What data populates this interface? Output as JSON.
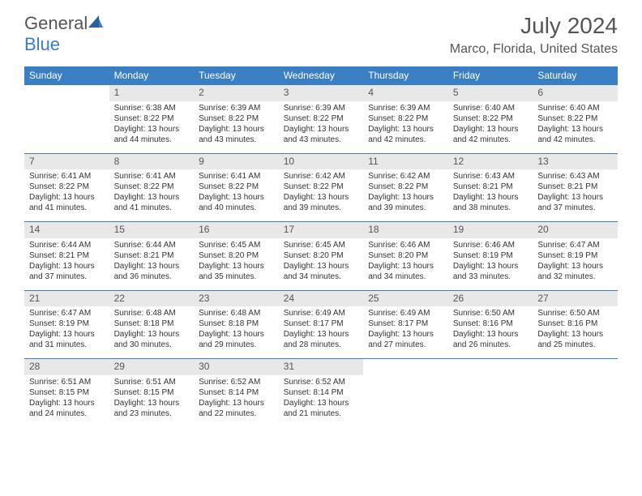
{
  "brand": {
    "part1": "General",
    "part2": "Blue"
  },
  "title": "July 2024",
  "location": "Marco, Florida, United States",
  "colors": {
    "header_bg": "#3a7fc4",
    "header_text": "#ffffff",
    "daynum_bg": "#e8e8e8",
    "text": "#333333",
    "title_text": "#555555",
    "border": "#3a7fc4",
    "page_bg": "#ffffff"
  },
  "fonts": {
    "title_size": 28,
    "location_size": 16,
    "dayhead_size": 12,
    "daynum_size": 12,
    "cell_size": 10
  },
  "days_of_week": [
    "Sunday",
    "Monday",
    "Tuesday",
    "Wednesday",
    "Thursday",
    "Friday",
    "Saturday"
  ],
  "weeks": [
    {
      "cells": [
        {
          "day": "",
          "sunrise": "",
          "sunset": "",
          "daylight1": "",
          "daylight2": ""
        },
        {
          "day": "1",
          "sunrise": "Sunrise: 6:38 AM",
          "sunset": "Sunset: 8:22 PM",
          "daylight1": "Daylight: 13 hours",
          "daylight2": "and 44 minutes."
        },
        {
          "day": "2",
          "sunrise": "Sunrise: 6:39 AM",
          "sunset": "Sunset: 8:22 PM",
          "daylight1": "Daylight: 13 hours",
          "daylight2": "and 43 minutes."
        },
        {
          "day": "3",
          "sunrise": "Sunrise: 6:39 AM",
          "sunset": "Sunset: 8:22 PM",
          "daylight1": "Daylight: 13 hours",
          "daylight2": "and 43 minutes."
        },
        {
          "day": "4",
          "sunrise": "Sunrise: 6:39 AM",
          "sunset": "Sunset: 8:22 PM",
          "daylight1": "Daylight: 13 hours",
          "daylight2": "and 42 minutes."
        },
        {
          "day": "5",
          "sunrise": "Sunrise: 6:40 AM",
          "sunset": "Sunset: 8:22 PM",
          "daylight1": "Daylight: 13 hours",
          "daylight2": "and 42 minutes."
        },
        {
          "day": "6",
          "sunrise": "Sunrise: 6:40 AM",
          "sunset": "Sunset: 8:22 PM",
          "daylight1": "Daylight: 13 hours",
          "daylight2": "and 42 minutes."
        }
      ]
    },
    {
      "cells": [
        {
          "day": "7",
          "sunrise": "Sunrise: 6:41 AM",
          "sunset": "Sunset: 8:22 PM",
          "daylight1": "Daylight: 13 hours",
          "daylight2": "and 41 minutes."
        },
        {
          "day": "8",
          "sunrise": "Sunrise: 6:41 AM",
          "sunset": "Sunset: 8:22 PM",
          "daylight1": "Daylight: 13 hours",
          "daylight2": "and 41 minutes."
        },
        {
          "day": "9",
          "sunrise": "Sunrise: 6:41 AM",
          "sunset": "Sunset: 8:22 PM",
          "daylight1": "Daylight: 13 hours",
          "daylight2": "and 40 minutes."
        },
        {
          "day": "10",
          "sunrise": "Sunrise: 6:42 AM",
          "sunset": "Sunset: 8:22 PM",
          "daylight1": "Daylight: 13 hours",
          "daylight2": "and 39 minutes."
        },
        {
          "day": "11",
          "sunrise": "Sunrise: 6:42 AM",
          "sunset": "Sunset: 8:22 PM",
          "daylight1": "Daylight: 13 hours",
          "daylight2": "and 39 minutes."
        },
        {
          "day": "12",
          "sunrise": "Sunrise: 6:43 AM",
          "sunset": "Sunset: 8:21 PM",
          "daylight1": "Daylight: 13 hours",
          "daylight2": "and 38 minutes."
        },
        {
          "day": "13",
          "sunrise": "Sunrise: 6:43 AM",
          "sunset": "Sunset: 8:21 PM",
          "daylight1": "Daylight: 13 hours",
          "daylight2": "and 37 minutes."
        }
      ]
    },
    {
      "cells": [
        {
          "day": "14",
          "sunrise": "Sunrise: 6:44 AM",
          "sunset": "Sunset: 8:21 PM",
          "daylight1": "Daylight: 13 hours",
          "daylight2": "and 37 minutes."
        },
        {
          "day": "15",
          "sunrise": "Sunrise: 6:44 AM",
          "sunset": "Sunset: 8:21 PM",
          "daylight1": "Daylight: 13 hours",
          "daylight2": "and 36 minutes."
        },
        {
          "day": "16",
          "sunrise": "Sunrise: 6:45 AM",
          "sunset": "Sunset: 8:20 PM",
          "daylight1": "Daylight: 13 hours",
          "daylight2": "and 35 minutes."
        },
        {
          "day": "17",
          "sunrise": "Sunrise: 6:45 AM",
          "sunset": "Sunset: 8:20 PM",
          "daylight1": "Daylight: 13 hours",
          "daylight2": "and 34 minutes."
        },
        {
          "day": "18",
          "sunrise": "Sunrise: 6:46 AM",
          "sunset": "Sunset: 8:20 PM",
          "daylight1": "Daylight: 13 hours",
          "daylight2": "and 34 minutes."
        },
        {
          "day": "19",
          "sunrise": "Sunrise: 6:46 AM",
          "sunset": "Sunset: 8:19 PM",
          "daylight1": "Daylight: 13 hours",
          "daylight2": "and 33 minutes."
        },
        {
          "day": "20",
          "sunrise": "Sunrise: 6:47 AM",
          "sunset": "Sunset: 8:19 PM",
          "daylight1": "Daylight: 13 hours",
          "daylight2": "and 32 minutes."
        }
      ]
    },
    {
      "cells": [
        {
          "day": "21",
          "sunrise": "Sunrise: 6:47 AM",
          "sunset": "Sunset: 8:19 PM",
          "daylight1": "Daylight: 13 hours",
          "daylight2": "and 31 minutes."
        },
        {
          "day": "22",
          "sunrise": "Sunrise: 6:48 AM",
          "sunset": "Sunset: 8:18 PM",
          "daylight1": "Daylight: 13 hours",
          "daylight2": "and 30 minutes."
        },
        {
          "day": "23",
          "sunrise": "Sunrise: 6:48 AM",
          "sunset": "Sunset: 8:18 PM",
          "daylight1": "Daylight: 13 hours",
          "daylight2": "and 29 minutes."
        },
        {
          "day": "24",
          "sunrise": "Sunrise: 6:49 AM",
          "sunset": "Sunset: 8:17 PM",
          "daylight1": "Daylight: 13 hours",
          "daylight2": "and 28 minutes."
        },
        {
          "day": "25",
          "sunrise": "Sunrise: 6:49 AM",
          "sunset": "Sunset: 8:17 PM",
          "daylight1": "Daylight: 13 hours",
          "daylight2": "and 27 minutes."
        },
        {
          "day": "26",
          "sunrise": "Sunrise: 6:50 AM",
          "sunset": "Sunset: 8:16 PM",
          "daylight1": "Daylight: 13 hours",
          "daylight2": "and 26 minutes."
        },
        {
          "day": "27",
          "sunrise": "Sunrise: 6:50 AM",
          "sunset": "Sunset: 8:16 PM",
          "daylight1": "Daylight: 13 hours",
          "daylight2": "and 25 minutes."
        }
      ]
    },
    {
      "cells": [
        {
          "day": "28",
          "sunrise": "Sunrise: 6:51 AM",
          "sunset": "Sunset: 8:15 PM",
          "daylight1": "Daylight: 13 hours",
          "daylight2": "and 24 minutes."
        },
        {
          "day": "29",
          "sunrise": "Sunrise: 6:51 AM",
          "sunset": "Sunset: 8:15 PM",
          "daylight1": "Daylight: 13 hours",
          "daylight2": "and 23 minutes."
        },
        {
          "day": "30",
          "sunrise": "Sunrise: 6:52 AM",
          "sunset": "Sunset: 8:14 PM",
          "daylight1": "Daylight: 13 hours",
          "daylight2": "and 22 minutes."
        },
        {
          "day": "31",
          "sunrise": "Sunrise: 6:52 AM",
          "sunset": "Sunset: 8:14 PM",
          "daylight1": "Daylight: 13 hours",
          "daylight2": "and 21 minutes."
        },
        {
          "day": "",
          "sunrise": "",
          "sunset": "",
          "daylight1": "",
          "daylight2": ""
        },
        {
          "day": "",
          "sunrise": "",
          "sunset": "",
          "daylight1": "",
          "daylight2": ""
        },
        {
          "day": "",
          "sunrise": "",
          "sunset": "",
          "daylight1": "",
          "daylight2": ""
        }
      ]
    }
  ]
}
